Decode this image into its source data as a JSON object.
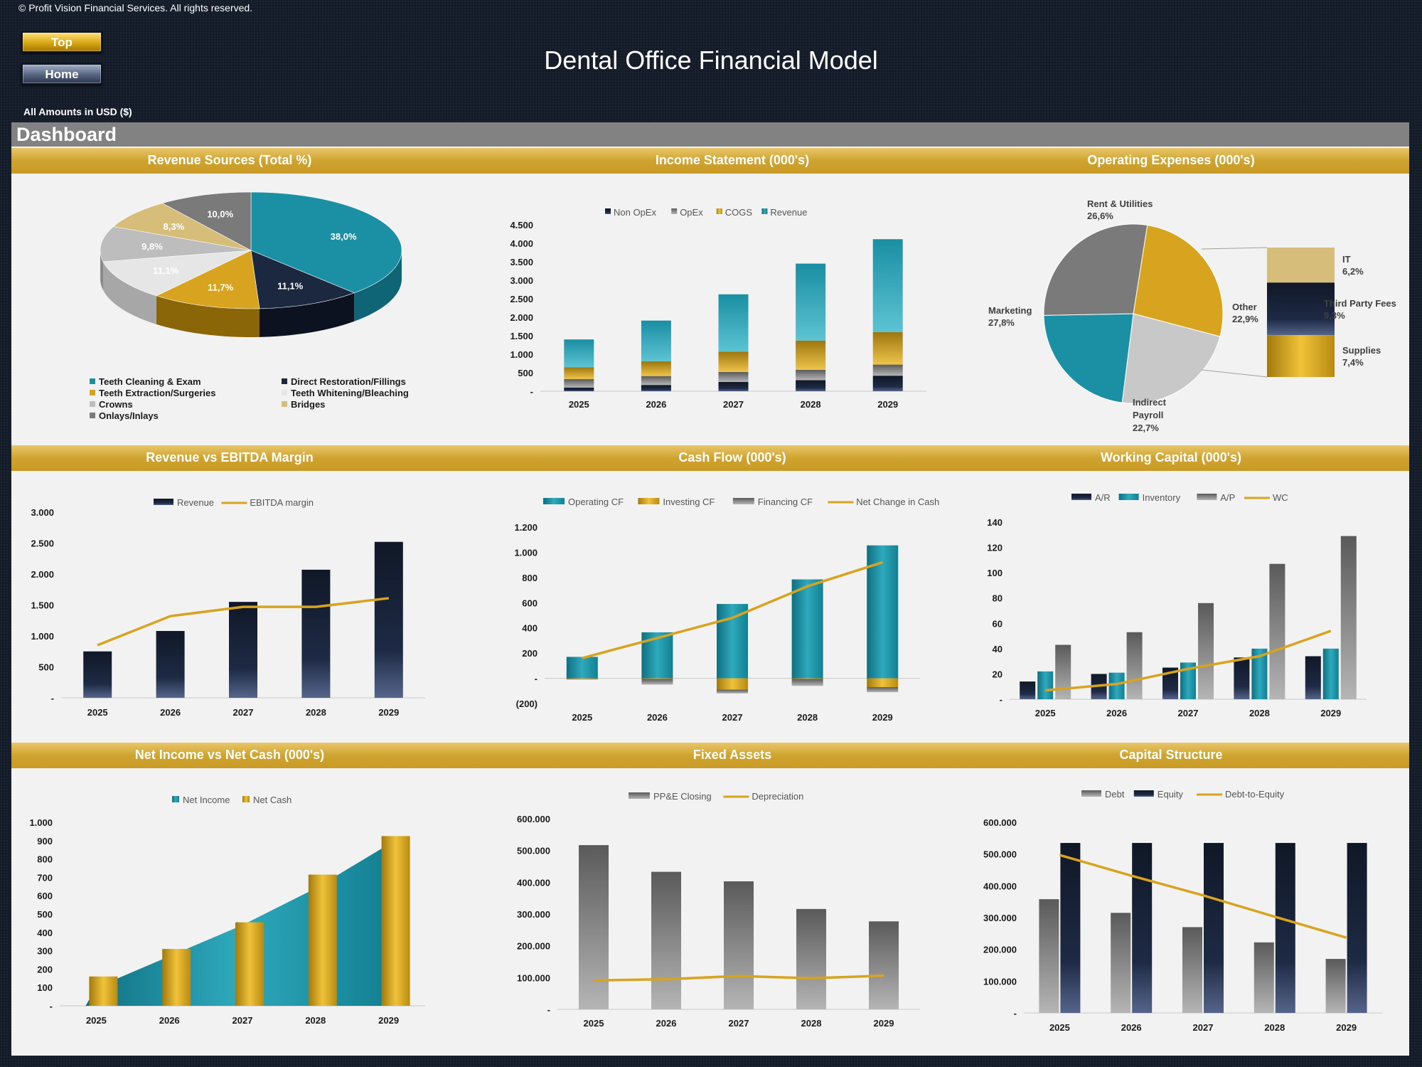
{
  "header": {
    "copyright": "© Profit Vision Financial Services. All rights reserved.",
    "top_button": "Top",
    "home_button": "Home",
    "title": "Dental Office Financial Model",
    "amounts_note": "All Amounts in  USD ($)",
    "dashboard_label": "Dashboard"
  },
  "colors": {
    "teal": "#1b8fa3",
    "navy": "#1c2740",
    "gold": "#d8a420",
    "grey": "#7a7a7a",
    "band": "#cfa32f"
  },
  "sections": {
    "row1": [
      "Revenue Sources (Total %)",
      "Income Statement (000's)",
      "Operating Expenses (000's)"
    ],
    "row2": [
      "Revenue vs EBITDA Margin",
      "Cash Flow (000's)",
      "Working Capital (000's)"
    ],
    "row3": [
      "Net Income vs Net Cash (000's)",
      "Fixed Assets",
      "Capital Structure"
    ]
  },
  "chart_data": [
    {
      "type": "pie",
      "title": "Revenue Sources (Total %)",
      "slices": [
        {
          "label": "Teeth Cleaning & Exam",
          "value": 38.0,
          "text": "38,0%",
          "color": "#1b8fa3"
        },
        {
          "label": "Direct Restoration/Fillings",
          "value": 11.1,
          "text": "11,1%",
          "color": "#1c2740"
        },
        {
          "label": "Teeth Extraction/Surgeries",
          "value": 11.7,
          "text": "11,7%",
          "color": "#d8a420"
        },
        {
          "label": "Teeth Whitening/Bleaching",
          "value": 11.1,
          "text": "11,1%",
          "color": "#e6e6e6"
        },
        {
          "label": "Crowns",
          "value": 9.8,
          "text": "9,8%",
          "color": "#bdbdbd"
        },
        {
          "label": "Bridges",
          "value": 8.3,
          "text": "8,3%",
          "color": "#d6bd7a"
        },
        {
          "label": "Onlays/Inlays",
          "value": 10.0,
          "text": "10,0%",
          "color": "#7a7a7a"
        }
      ],
      "legend_order": [
        "Teeth Cleaning & Exam",
        "Direct Restoration/Fillings",
        "Teeth Extraction/Surgeries",
        "Teeth Whitening/Bleaching",
        "Crowns",
        "Bridges",
        "Onlays/Inlays"
      ]
    },
    {
      "type": "bar",
      "stacked": true,
      "title": "Income Statement (000's)",
      "categories": [
        "2025",
        "2026",
        "2027",
        "2028",
        "2029"
      ],
      "y_ticks": [
        "-",
        "500",
        "1.000",
        "1.500",
        "2.000",
        "2.500",
        "3.000",
        "3.500",
        "4.000",
        "4.500"
      ],
      "ylim": [
        0,
        4500
      ],
      "legend": [
        "Non OpEx",
        "OpEx",
        "COGS",
        "Revenue"
      ],
      "series": [
        {
          "name": "Non OpEx",
          "values": [
            100,
            170,
            250,
            300,
            420
          ],
          "color": "#1c2740"
        },
        {
          "name": "OpEx",
          "values": [
            230,
            240,
            270,
            280,
            300
          ],
          "color": "#8a8a8a"
        },
        {
          "name": "COGS",
          "values": [
            320,
            400,
            550,
            790,
            880
          ],
          "color": "#d8a420"
        },
        {
          "name": "Revenue",
          "values": [
            750,
            1100,
            1550,
            2080,
            2510
          ],
          "color": "#1b8fa3"
        }
      ]
    },
    {
      "type": "pie",
      "title": "Operating Expenses (000's)",
      "slices": [
        {
          "label": "Rent & Utilities",
          "value": 26.6,
          "text": "26,6%",
          "color": "#d8a420"
        },
        {
          "label": "Other",
          "value": 22.9,
          "text": "22,9%",
          "color": "#c8c8c8"
        },
        {
          "label": "Indirect Payroll",
          "value": 22.7,
          "text": "22,7%",
          "color": "#1b8fa3"
        },
        {
          "label": "Marketing",
          "value": 27.8,
          "text": "27,8%",
          "color": "#7a7a7a"
        }
      ],
      "breakdown": [
        {
          "label": "IT",
          "value": 6.2,
          "text": "6,2%",
          "color": "#d6bd7a"
        },
        {
          "label": "Third Party Fees",
          "value": 9.3,
          "text": "9,3%",
          "color": "#1c2740"
        },
        {
          "label": "Supplies",
          "value": 7.4,
          "text": "7,4%",
          "color": "#d8a420"
        }
      ]
    },
    {
      "type": "bar",
      "title": "Revenue vs EBITDA Margin",
      "categories": [
        "2025",
        "2026",
        "2027",
        "2028",
        "2029"
      ],
      "y_ticks": [
        "-",
        "500",
        "1.000",
        "1.500",
        "2.000",
        "2.500",
        "3.000"
      ],
      "ylim": [
        0,
        3000
      ],
      "series": [
        {
          "name": "Revenue",
          "values": [
            750,
            1080,
            1550,
            2070,
            2520
          ],
          "color": "#1c2740"
        },
        {
          "name": "EBITDA margin",
          "kind": "line",
          "values": [
            850,
            1320,
            1470,
            1470,
            1610
          ],
          "color": "#d8a420"
        }
      ]
    },
    {
      "type": "bar",
      "title": "Cash Flow (000's)",
      "categories": [
        "2025",
        "2026",
        "2027",
        "2028",
        "2029"
      ],
      "y_ticks": [
        "(200)",
        "-",
        "200",
        "400",
        "600",
        "800",
        "1.000",
        "1.200"
      ],
      "ylim": [
        -200,
        1200
      ],
      "series": [
        {
          "name": "Operating CF",
          "values": [
            170,
            365,
            590,
            785,
            1055
          ],
          "color": "#1b8fa3"
        },
        {
          "name": "Investing CF",
          "values": [
            -5,
            -5,
            -90,
            -5,
            -70
          ],
          "color": "#d8a420"
        },
        {
          "name": "Financing CF",
          "values": [
            -5,
            -45,
            -30,
            -55,
            -40
          ],
          "color": "#8a8a8a"
        },
        {
          "name": "Net Change in Cash",
          "kind": "line",
          "values": [
            160,
            320,
            480,
            730,
            920
          ],
          "color": "#d8a420"
        }
      ]
    },
    {
      "type": "bar",
      "title": "Working Capital (000's)",
      "categories": [
        "2025",
        "2026",
        "2027",
        "2028",
        "2029"
      ],
      "y_ticks": [
        "-",
        "20",
        "40",
        "60",
        "80",
        "100",
        "120",
        "140"
      ],
      "ylim": [
        0,
        140
      ],
      "series": [
        {
          "name": "A/R",
          "values": [
            14,
            20,
            25,
            33,
            34
          ],
          "color": "#1c2740"
        },
        {
          "name": "Inventory",
          "values": [
            22,
            21,
            29,
            40,
            40
          ],
          "color": "#1b8fa3"
        },
        {
          "name": "A/P",
          "values": [
            43,
            53,
            76,
            107,
            129
          ],
          "color": "#7a7a7a"
        },
        {
          "name": "WC",
          "kind": "line",
          "values": [
            7,
            12,
            24,
            34,
            54
          ],
          "color": "#d8a420"
        }
      ]
    },
    {
      "type": "bar",
      "title": "Net Income vs Net Cash (000's)",
      "categories": [
        "2025",
        "2026",
        "2027",
        "2028",
        "2029"
      ],
      "y_ticks": [
        "-",
        "100",
        "200",
        "300",
        "400",
        "500",
        "600",
        "700",
        "800",
        "900",
        "1.000"
      ],
      "ylim": [
        0,
        1000
      ],
      "series": [
        {
          "name": "Net Income",
          "kind": "area",
          "values": [
            100,
            270,
            440,
            640,
            880
          ],
          "color": "#1b8fa3"
        },
        {
          "name": "Net Cash",
          "values": [
            160,
            310,
            455,
            715,
            925
          ],
          "color": "#d8a420"
        }
      ]
    },
    {
      "type": "bar",
      "title": "Fixed Assets",
      "categories": [
        "2025",
        "2026",
        "2027",
        "2028",
        "2029"
      ],
      "y_ticks": [
        "-",
        "100.000",
        "200.000",
        "300.000",
        "400.000",
        "500.000",
        "600.000"
      ],
      "ylim": [
        0,
        600000
      ],
      "series": [
        {
          "name": "PP&E Closing",
          "values": [
            517000,
            433000,
            403000,
            316000,
            277000
          ],
          "color": "#7a7a7a"
        },
        {
          "name": "Depreciation",
          "kind": "line",
          "values": [
            91000,
            95000,
            105000,
            98000,
            106000
          ],
          "color": "#d8a420"
        }
      ]
    },
    {
      "type": "bar",
      "title": "Capital Structure",
      "categories": [
        "2025",
        "2026",
        "2027",
        "2028",
        "2029"
      ],
      "y_ticks": [
        "-",
        "100.000",
        "200.000",
        "300.000",
        "400.000",
        "500.000",
        "600.000"
      ],
      "ylim": [
        0,
        600000
      ],
      "series": [
        {
          "name": "Debt",
          "values": [
            358000,
            315000,
            270000,
            222000,
            170000
          ],
          "color": "#7a7a7a"
        },
        {
          "name": "Equity",
          "values": [
            535000,
            535000,
            535000,
            535000,
            535000
          ],
          "color": "#1c2740"
        },
        {
          "name": "Debt-to-Equity",
          "kind": "line",
          "values": [
            497000,
            432000,
            370000,
            303000,
            237000
          ],
          "color": "#d8a420"
        }
      ]
    }
  ]
}
